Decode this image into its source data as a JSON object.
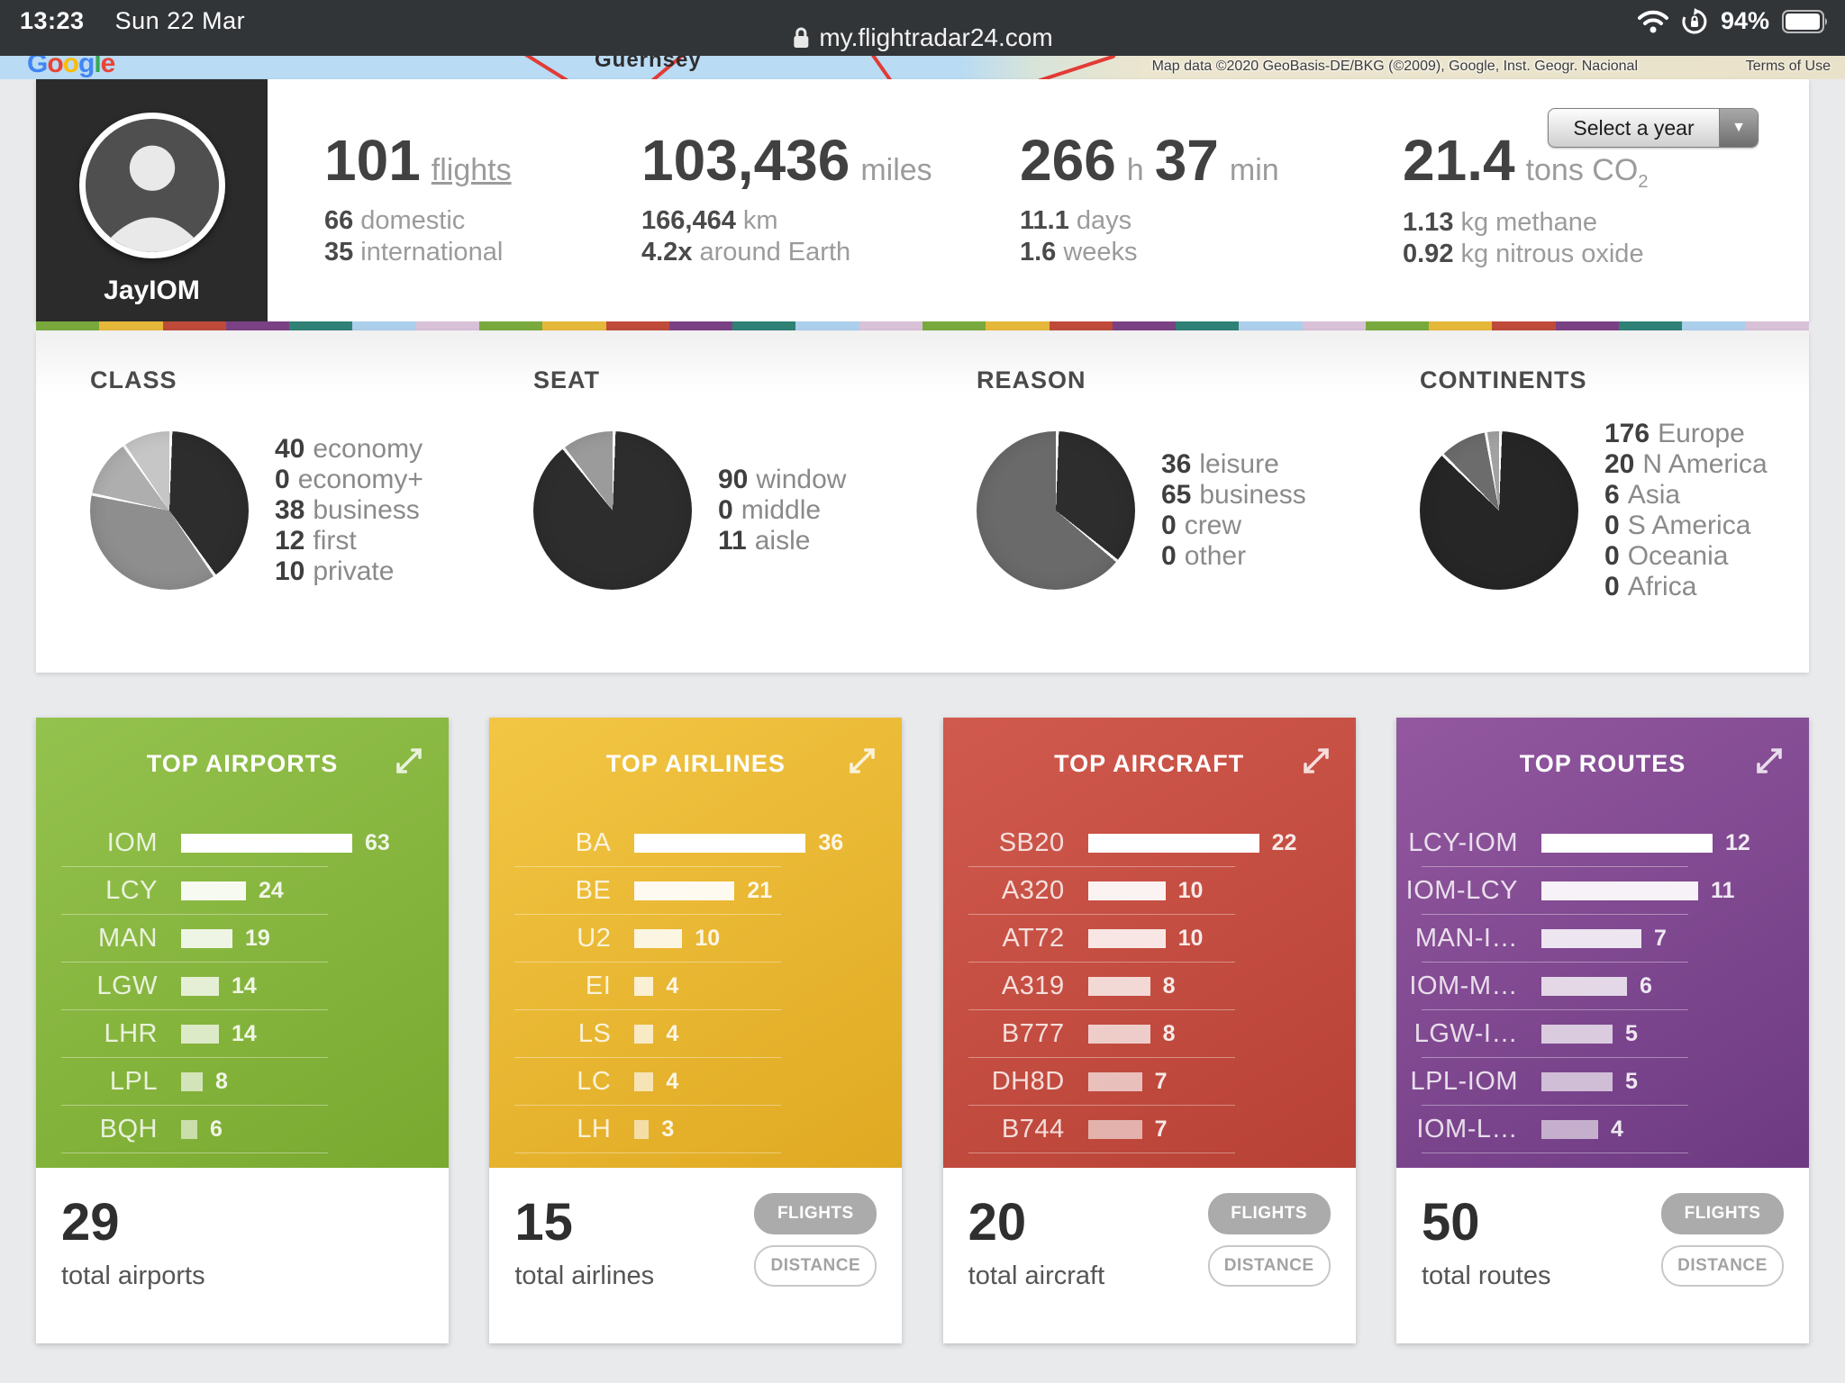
{
  "status_bar": {
    "time": "13:23",
    "date": "Sun 22 Mar",
    "url": "my.flightradar24.com",
    "battery": "94%"
  },
  "map_strip": {
    "logo": "Google",
    "place_label": "Guernsey",
    "attribution": "Map data ©2020 GeoBasis-DE/BKG (©2009), Google, Inst. Geogr. Nacional",
    "terms": "Terms of Use"
  },
  "profile": {
    "name": "JayIOM"
  },
  "year_select": {
    "label": "Select a year"
  },
  "summary": [
    {
      "segments": [
        {
          "t": "101",
          "big": true
        },
        {
          "t": "flights",
          "underline": true
        }
      ],
      "lines": [
        {
          "b": "66",
          "t": "domestic"
        },
        {
          "b": "35",
          "t": "international"
        }
      ]
    },
    {
      "segments": [
        {
          "t": "103,436",
          "big": true
        },
        {
          "t": "miles"
        }
      ],
      "lines": [
        {
          "b": "166,464",
          "t": "km"
        },
        {
          "b": "4.2x",
          "t": "around Earth"
        }
      ]
    },
    {
      "segments": [
        {
          "t": "266",
          "big": true
        },
        {
          "t": "h"
        },
        {
          "t": "37",
          "big": true
        },
        {
          "t": "min"
        }
      ],
      "lines": [
        {
          "b": "11.1",
          "t": "days"
        },
        {
          "b": "1.6",
          "t": "weeks"
        }
      ]
    },
    {
      "segments": [
        {
          "t": "21.4",
          "big": true
        },
        {
          "t": "tons CO",
          "sub": "2"
        }
      ],
      "lines": [
        {
          "b": "1.13",
          "t": "kg methane"
        },
        {
          "b": "0.92",
          "t": "kg nitrous oxide"
        }
      ]
    }
  ],
  "stripe_colors": [
    "#79a93d",
    "#e5b839",
    "#bf4a3a",
    "#7a4284",
    "#2f8176",
    "#accfeb",
    "#d9c1d8"
  ],
  "chart_data": [
    {
      "type": "pie",
      "title": "CLASS",
      "slices": [
        {
          "label": "economy",
          "value": 40,
          "color": "#2d2d2d"
        },
        {
          "label": "economy+",
          "value": 0,
          "color": "#5a5a5a"
        },
        {
          "label": "business",
          "value": 38,
          "color": "#8e8e8e"
        },
        {
          "label": "first",
          "value": 12,
          "color": "#aeaeae"
        },
        {
          "label": "private",
          "value": 10,
          "color": "#c6c6c6"
        }
      ]
    },
    {
      "type": "pie",
      "title": "SEAT",
      "slices": [
        {
          "label": "window",
          "value": 90,
          "color": "#2d2d2d"
        },
        {
          "label": "middle",
          "value": 0,
          "color": "#777777"
        },
        {
          "label": "aisle",
          "value": 11,
          "color": "#9b9b9b"
        }
      ]
    },
    {
      "type": "pie",
      "title": "REASON",
      "slices": [
        {
          "label": "leisure",
          "value": 36,
          "color": "#2d2d2d"
        },
        {
          "label": "business",
          "value": 65,
          "color": "#6a6a6a"
        },
        {
          "label": "crew",
          "value": 0,
          "color": "#999999"
        },
        {
          "label": "other",
          "value": 0,
          "color": "#bbbbbb"
        }
      ]
    },
    {
      "type": "pie",
      "title": "CONTINENTS",
      "slices": [
        {
          "label": "Europe",
          "value": 176,
          "color": "#262626"
        },
        {
          "label": "N America",
          "value": 20,
          "color": "#6c6c6c"
        },
        {
          "label": "Asia",
          "value": 6,
          "color": "#a2a2a2"
        },
        {
          "label": "S America",
          "value": 0,
          "color": "#bbbbbb"
        },
        {
          "label": "Oceania",
          "value": 0,
          "color": "#cccccc"
        },
        {
          "label": "Africa",
          "value": 0,
          "color": "#dddddd"
        }
      ]
    },
    {
      "type": "bar",
      "title": "TOP AIRPORTS",
      "gradient": [
        "#94c24e",
        "#79a92f"
      ],
      "rows": [
        {
          "label": "IOM",
          "value": 63
        },
        {
          "label": "LCY",
          "value": 24
        },
        {
          "label": "MAN",
          "value": 19
        },
        {
          "label": "LGW",
          "value": 14
        },
        {
          "label": "LHR",
          "value": 14
        },
        {
          "label": "LPL",
          "value": 8
        },
        {
          "label": "BQH",
          "value": 6
        }
      ],
      "total": "29",
      "total_label": "total airports",
      "buttons": []
    },
    {
      "type": "bar",
      "title": "TOP AIRLINES",
      "gradient": [
        "#f2c644",
        "#e0a922"
      ],
      "rows": [
        {
          "label": "BA",
          "value": 36
        },
        {
          "label": "BE",
          "value": 21
        },
        {
          "label": "U2",
          "value": 10
        },
        {
          "label": "EI",
          "value": 4
        },
        {
          "label": "LS",
          "value": 4
        },
        {
          "label": "LC",
          "value": 4
        },
        {
          "label": "LH",
          "value": 3
        }
      ],
      "total": "15",
      "total_label": "total airlines",
      "buttons": [
        "FLIGHTS",
        "DISTANCE"
      ]
    },
    {
      "type": "bar",
      "title": "TOP AIRCRAFT",
      "gradient": [
        "#d15a4e",
        "#b84135"
      ],
      "rows": [
        {
          "label": "SB20",
          "value": 22
        },
        {
          "label": "A320",
          "value": 10
        },
        {
          "label": "AT72",
          "value": 10
        },
        {
          "label": "A319",
          "value": 8
        },
        {
          "label": "B777",
          "value": 8
        },
        {
          "label": "DH8D",
          "value": 7
        },
        {
          "label": "B744",
          "value": 7
        }
      ],
      "total": "20",
      "total_label": "total aircraft",
      "buttons": [
        "FLIGHTS",
        "DISTANCE"
      ]
    },
    {
      "type": "bar",
      "title": "TOP ROUTES",
      "gradient": [
        "#93589f",
        "#6d3a82"
      ],
      "rows": [
        {
          "label": "LCY-IOM",
          "value": 12
        },
        {
          "label": "IOM-LCY",
          "value": 11
        },
        {
          "label": "MAN-I…",
          "value": 7
        },
        {
          "label": "IOM-M…",
          "value": 6
        },
        {
          "label": "LGW-I…",
          "value": 5
        },
        {
          "label": "LPL-IOM",
          "value": 5
        },
        {
          "label": "IOM-L…",
          "value": 4
        }
      ],
      "total": "50",
      "total_label": "total routes",
      "buttons": [
        "FLIGHTS",
        "DISTANCE"
      ]
    }
  ]
}
